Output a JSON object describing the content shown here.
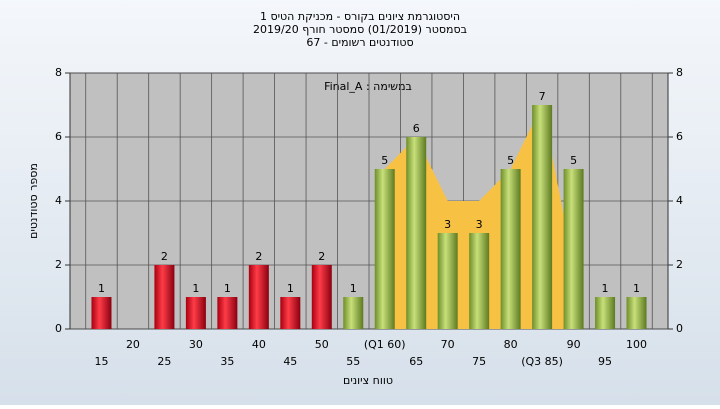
{
  "chart_data": {
    "type": "bar",
    "title": [
      "היסטוגרמת ציונים בקורס - מכניקת הטיס 1",
      "בסמסטר  (01/2019)  סמסטר חורף  2019/20",
      "סטודנטים רשומים - 67"
    ],
    "annotation": "במשימה : Final_A",
    "x_label": "טווח ציונים",
    "y_label": "מספר סטודנטים",
    "categories": [
      "15",
      "20",
      "25",
      "30",
      "35",
      "40",
      "45",
      "50",
      "55",
      "(Q1 60)",
      "65",
      "70",
      "75",
      "80",
      "(Q3 85)",
      "90",
      "95",
      "100"
    ],
    "values": [
      1,
      null,
      2,
      1,
      1,
      2,
      1,
      2,
      1,
      5,
      6,
      3,
      3,
      5,
      7,
      5,
      1,
      1
    ],
    "bar_colors": [
      "red",
      "red",
      "red",
      "red",
      "red",
      "red",
      "red",
      "red",
      "green",
      "green",
      "green",
      "green",
      "green",
      "green",
      "green",
      "green",
      "green",
      "green"
    ],
    "area": {
      "color": "#f7c244",
      "values": [
        null,
        null,
        null,
        null,
        null,
        null,
        null,
        null,
        null,
        5,
        6,
        4,
        4,
        5,
        7,
        2,
        null,
        null
      ]
    },
    "ylim": [
      0,
      8
    ],
    "yticks": [
      0,
      2,
      4,
      6,
      8
    ],
    "grid": true
  }
}
